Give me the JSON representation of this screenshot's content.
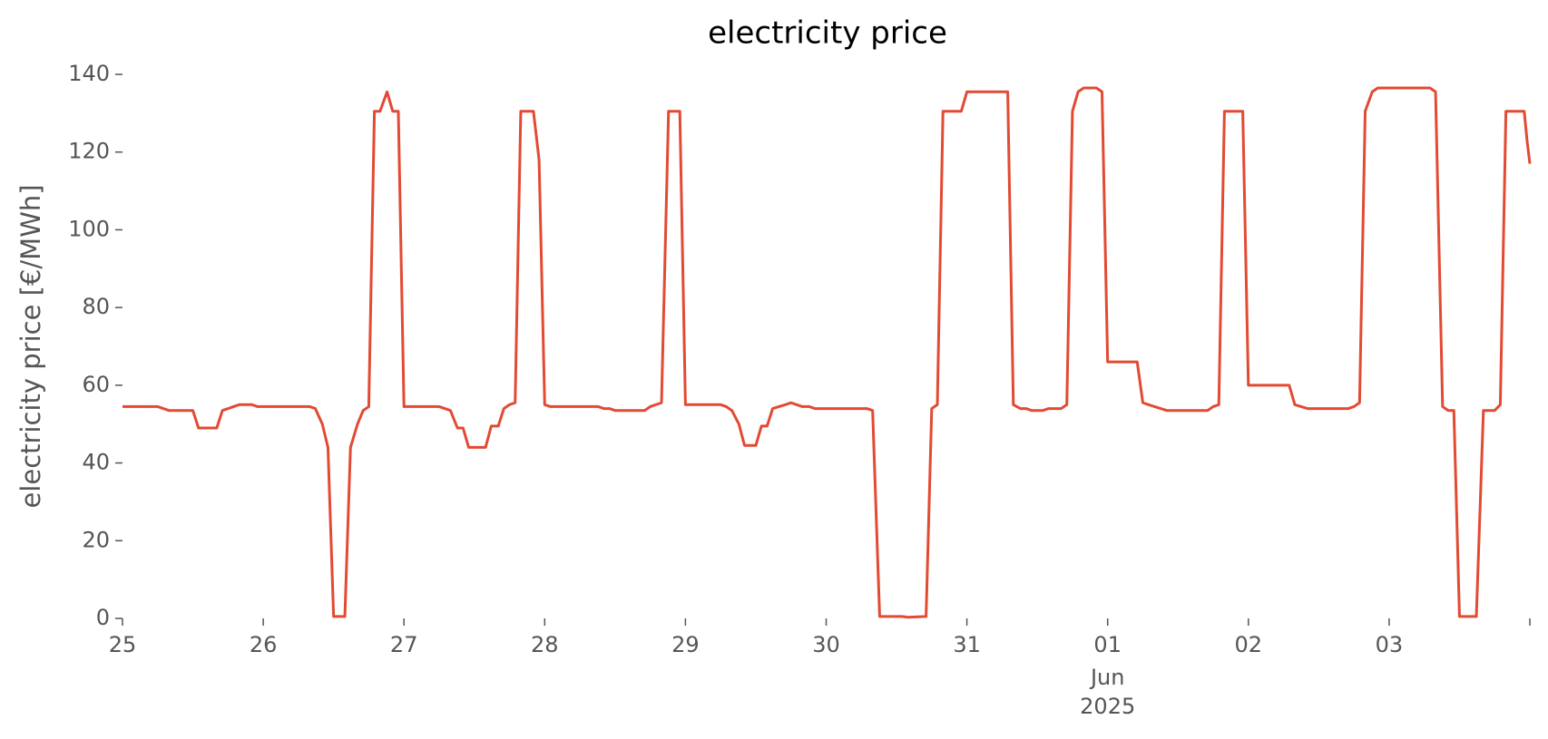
{
  "chart_data": {
    "type": "line",
    "title": "electricity price",
    "y_label": "electricity price [€/MWh]",
    "x_month_label": "Jun",
    "x_year_label": "2025",
    "color": "#e24a33",
    "x": [
      0,
      0.25,
      0.29,
      0.33,
      0.5,
      0.54,
      0.67,
      0.71,
      0.83,
      0.92,
      0.96,
      1.33,
      1.37,
      1.42,
      1.46,
      1.5,
      1.58,
      1.62,
      1.67,
      1.71,
      1.75,
      1.79,
      1.83,
      1.88,
      1.92,
      1.96,
      2,
      2.25,
      2.29,
      2.33,
      2.38,
      2.42,
      2.46,
      2.58,
      2.62,
      2.67,
      2.71,
      2.75,
      2.79,
      2.83,
      2.92,
      2.96,
      3,
      3.04,
      3.38,
      3.42,
      3.46,
      3.5,
      3.71,
      3.75,
      3.83,
      3.88,
      3.96,
      4,
      4.25,
      4.29,
      4.33,
      4.38,
      4.42,
      4.5,
      4.54,
      4.58,
      4.62,
      4.71,
      4.75,
      4.79,
      4.83,
      4.88,
      4.92,
      5.29,
      5.33,
      5.38,
      5.54,
      5.58,
      5.71,
      5.75,
      5.79,
      5.83,
      5.96,
      6,
      6.29,
      6.33,
      6.38,
      6.42,
      6.46,
      6.54,
      6.58,
      6.67,
      6.71,
      6.75,
      6.79,
      6.83,
      6.92,
      6.96,
      7,
      7.21,
      7.25,
      7.29,
      7.42,
      7.71,
      7.75,
      7.79,
      7.83,
      7.96,
      8,
      8.29,
      8.33,
      8.42,
      8.71,
      8.75,
      8.79,
      8.83,
      8.88,
      8.92,
      9.29,
      9.33,
      9.38,
      9.42,
      9.46,
      9.5,
      9.62,
      9.67,
      9.75,
      9.79,
      9.83,
      9.96,
      9.98,
      10
    ],
    "values": [
      54.5,
      54.5,
      54,
      53.5,
      53.5,
      49,
      49,
      53.5,
      55,
      55,
      54.5,
      54.5,
      54,
      50,
      44,
      0.5,
      0.5,
      44,
      50,
      53.5,
      54.5,
      130.5,
      130.5,
      135.5,
      130.5,
      130.5,
      54.5,
      54.5,
      54,
      53.5,
      49,
      49,
      44,
      44,
      49.5,
      49.5,
      54,
      55,
      55.5,
      130.5,
      130.5,
      118,
      55,
      54.5,
      54.5,
      54,
      54,
      53.5,
      53.5,
      54.5,
      55.5,
      130.5,
      130.5,
      55,
      55,
      54.5,
      53.5,
      50,
      44.5,
      44.5,
      49.5,
      49.5,
      54,
      55,
      55.5,
      55,
      54.5,
      54.5,
      54,
      54,
      53.5,
      0.5,
      0.5,
      0.3,
      0.5,
      54,
      55,
      130.5,
      130.5,
      135.5,
      135.5,
      55,
      54,
      54,
      53.5,
      53.5,
      54,
      54,
      55,
      130.5,
      135.5,
      136.5,
      136.5,
      135.5,
      66,
      66,
      55.5,
      55,
      53.5,
      53.5,
      54.5,
      55,
      130.5,
      130.5,
      60,
      60,
      55,
      54,
      54,
      54.5,
      55.5,
      130.5,
      135.5,
      136.5,
      136.5,
      135.5,
      54.5,
      53.5,
      53.5,
      0.5,
      0.5,
      53.5,
      53.5,
      55,
      130.5,
      130.5,
      123,
      117
    ],
    "xlim": [
      0,
      10
    ],
    "xticks": [
      {
        "value": 0,
        "label": "25"
      },
      {
        "value": 1,
        "label": "26"
      },
      {
        "value": 2,
        "label": "27"
      },
      {
        "value": 3,
        "label": "28"
      },
      {
        "value": 4,
        "label": "29"
      },
      {
        "value": 5,
        "label": "30"
      },
      {
        "value": 6,
        "label": "31"
      },
      {
        "value": 7,
        "label": "01"
      },
      {
        "value": 8,
        "label": "02"
      },
      {
        "value": 9,
        "label": "03"
      },
      {
        "value": 10,
        "label": null
      }
    ],
    "x_sublabel_tick": 7,
    "ylim": [
      0,
      140
    ],
    "yticks": [
      0,
      20,
      40,
      60,
      80,
      100,
      120,
      140
    ],
    "grid": false
  }
}
